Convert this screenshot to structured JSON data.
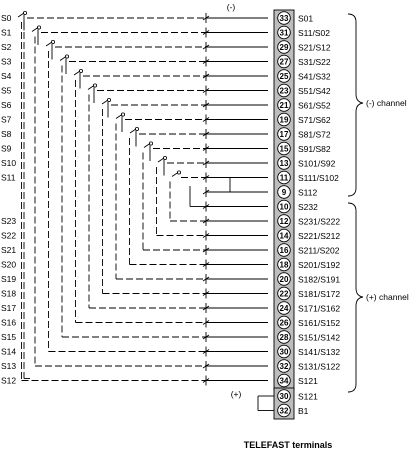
{
  "diagram": {
    "caption": "TELEFAST terminals",
    "top_polarity": "(-)",
    "bottom_polarity": "(+)",
    "channel_minus_label": "(-) channel",
    "channel_plus_label": "(+) channel",
    "left_labels_top": [
      "S0",
      "S1",
      "S2",
      "S3",
      "S4",
      "S5",
      "S6",
      "S7",
      "S8",
      "S9",
      "S10",
      "S11"
    ],
    "left_labels_bottom": [
      "S23",
      "S22",
      "S21",
      "S20",
      "S19",
      "S18",
      "S17",
      "S16",
      "S15",
      "S14",
      "S13",
      "S12"
    ],
    "terminals": [
      {
        "num": "33",
        "label": "S01"
      },
      {
        "num": "31",
        "label": "S11/S02"
      },
      {
        "num": "29",
        "label": "S21/S12"
      },
      {
        "num": "27",
        "label": "S31/S22"
      },
      {
        "num": "25",
        "label": "S41/S32"
      },
      {
        "num": "23",
        "label": "S51/S42"
      },
      {
        "num": "21",
        "label": "S61/S52"
      },
      {
        "num": "19",
        "label": "S71/S62"
      },
      {
        "num": "17",
        "label": "S81/S72"
      },
      {
        "num": "15",
        "label": "S91/S82"
      },
      {
        "num": "13",
        "label": "S101/S92"
      },
      {
        "num": "11",
        "label": "S111/S102"
      },
      {
        "num": "9",
        "label": "S112"
      },
      {
        "num": "10",
        "label": "S232"
      },
      {
        "num": "12",
        "label": "S231/S222"
      },
      {
        "num": "14",
        "label": "S221/S212"
      },
      {
        "num": "16",
        "label": "S211/S202"
      },
      {
        "num": "18",
        "label": "S201/S192"
      },
      {
        "num": "20",
        "label": "S182/S191"
      },
      {
        "num": "22",
        "label": "S181/S172"
      },
      {
        "num": "24",
        "label": "S171/S162"
      },
      {
        "num": "26",
        "label": "S161/S152"
      },
      {
        "num": "28",
        "label": "S151/S142"
      },
      {
        "num": "30",
        "label": "S141/S132"
      },
      {
        "num": "32",
        "label": "S131/S122"
      },
      {
        "num": "34",
        "label": "S121"
      }
    ],
    "extra_terminals": [
      {
        "num": "30",
        "label": "S121"
      },
      {
        "num": "32",
        "label": "B1"
      }
    ]
  }
}
